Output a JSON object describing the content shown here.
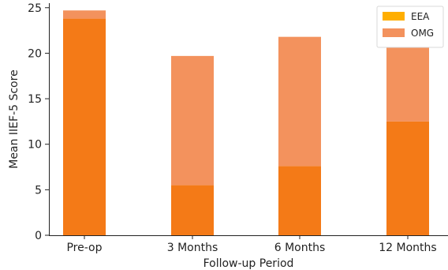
{
  "chart_data": {
    "type": "bar",
    "stacked": true,
    "categories": [
      "Pre-op",
      "3 Months",
      "6 Months",
      "12 Months"
    ],
    "series": [
      {
        "name": "EEA",
        "values": [
          23.8,
          5.5,
          7.6,
          12.5
        ],
        "color": "#f47a17"
      },
      {
        "name": "OMG",
        "values": [
          0.9,
          14.2,
          14.2,
          9.3
        ],
        "color": "#f3925d"
      }
    ],
    "overlap_color": "#f47a17",
    "legend_swatches": {
      "EEA": "#ffae00",
      "OMG": "#f3925d"
    },
    "xlabel": "Follow-up Period",
    "ylabel": "Mean IIEF-5 Score",
    "ylim": [
      0,
      25.5
    ],
    "yticks": [
      0,
      5,
      10,
      15,
      20,
      25
    ],
    "grid": false,
    "legend_position": "top-right"
  }
}
